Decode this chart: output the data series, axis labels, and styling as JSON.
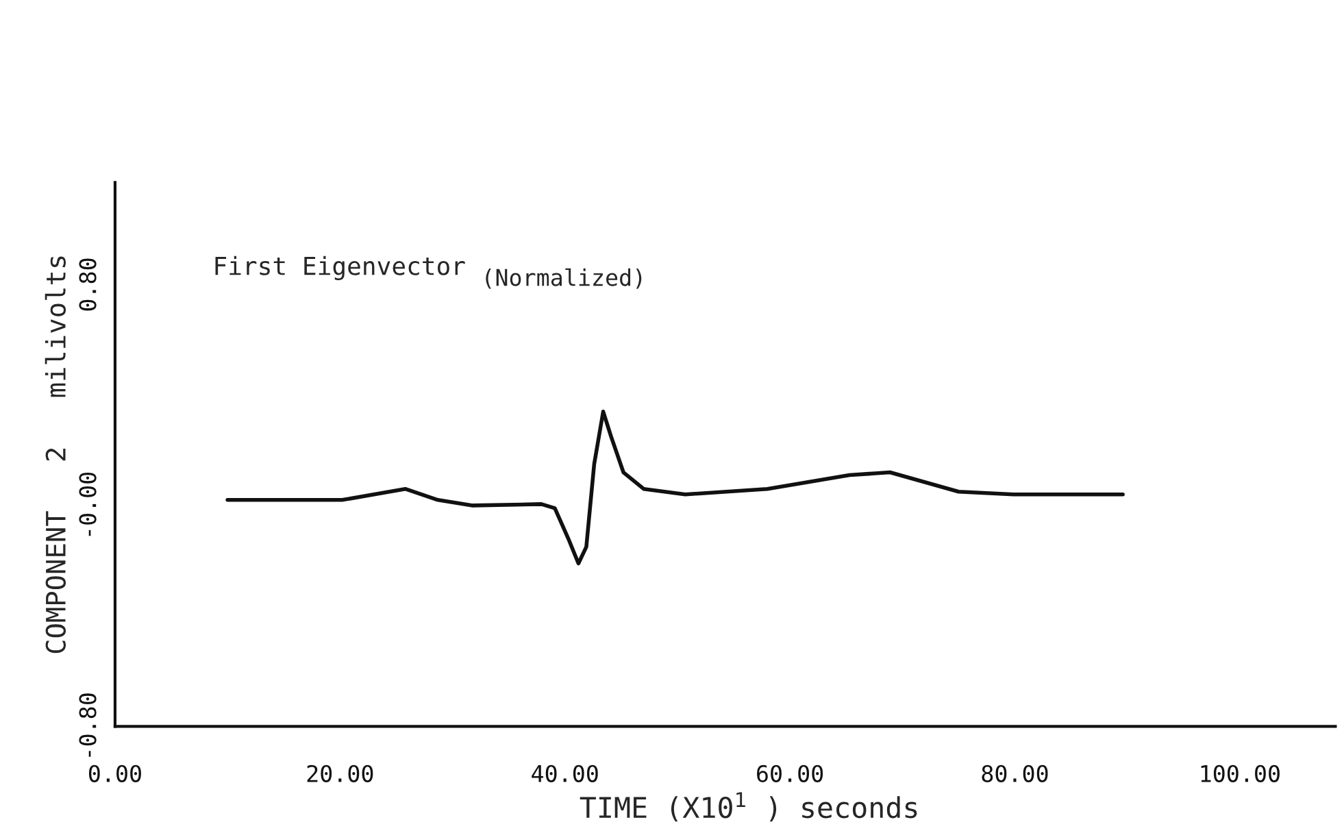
{
  "chart_data": {
    "type": "line",
    "xlabel": "TIME (X10$^{1}$ ) seconds",
    "ylabel": "COMPONENT   2   milivolts",
    "annotations": [
      "First Eigenvector",
      "(Normalized)"
    ],
    "series": [
      {
        "color": "#111111",
        "x": [
          10,
          20.2,
          25.8,
          28.7,
          31.8,
          37.9,
          39.1,
          40.3,
          41.2,
          41.9,
          42.6,
          43.4,
          44.1,
          45.2,
          47.0,
          50.7,
          58.0,
          65.3,
          68.9,
          75.0,
          79.9,
          89.6
        ],
        "values": [
          0.02,
          0.02,
          0.06,
          0.02,
          0.0,
          0.005,
          -0.01,
          -0.12,
          -0.21,
          -0.15,
          0.15,
          0.34,
          0.25,
          0.12,
          0.06,
          0.04,
          0.06,
          0.11,
          0.12,
          0.05,
          0.04,
          0.04
        ]
      }
    ],
    "xlim": [
      0,
      108.5
    ],
    "ylim": [
      -0.8,
      1.17
    ],
    "xticks": [
      {
        "value": 0,
        "label": "0.00"
      },
      {
        "value": 20,
        "label": "20.00"
      },
      {
        "value": 40,
        "label": "40.00"
      },
      {
        "value": 60,
        "label": "60.00"
      },
      {
        "value": 80,
        "label": "80.00"
      },
      {
        "value": 100,
        "label": "100.00"
      }
    ],
    "yticks": [
      {
        "value": -0.8,
        "label": "-0.80"
      },
      {
        "value": 0,
        "label": "-0.00"
      },
      {
        "value": 0.8,
        "label": "0.80"
      }
    ],
    "grid": false,
    "legend": false,
    "marker": "none",
    "line_style": "solid"
  }
}
